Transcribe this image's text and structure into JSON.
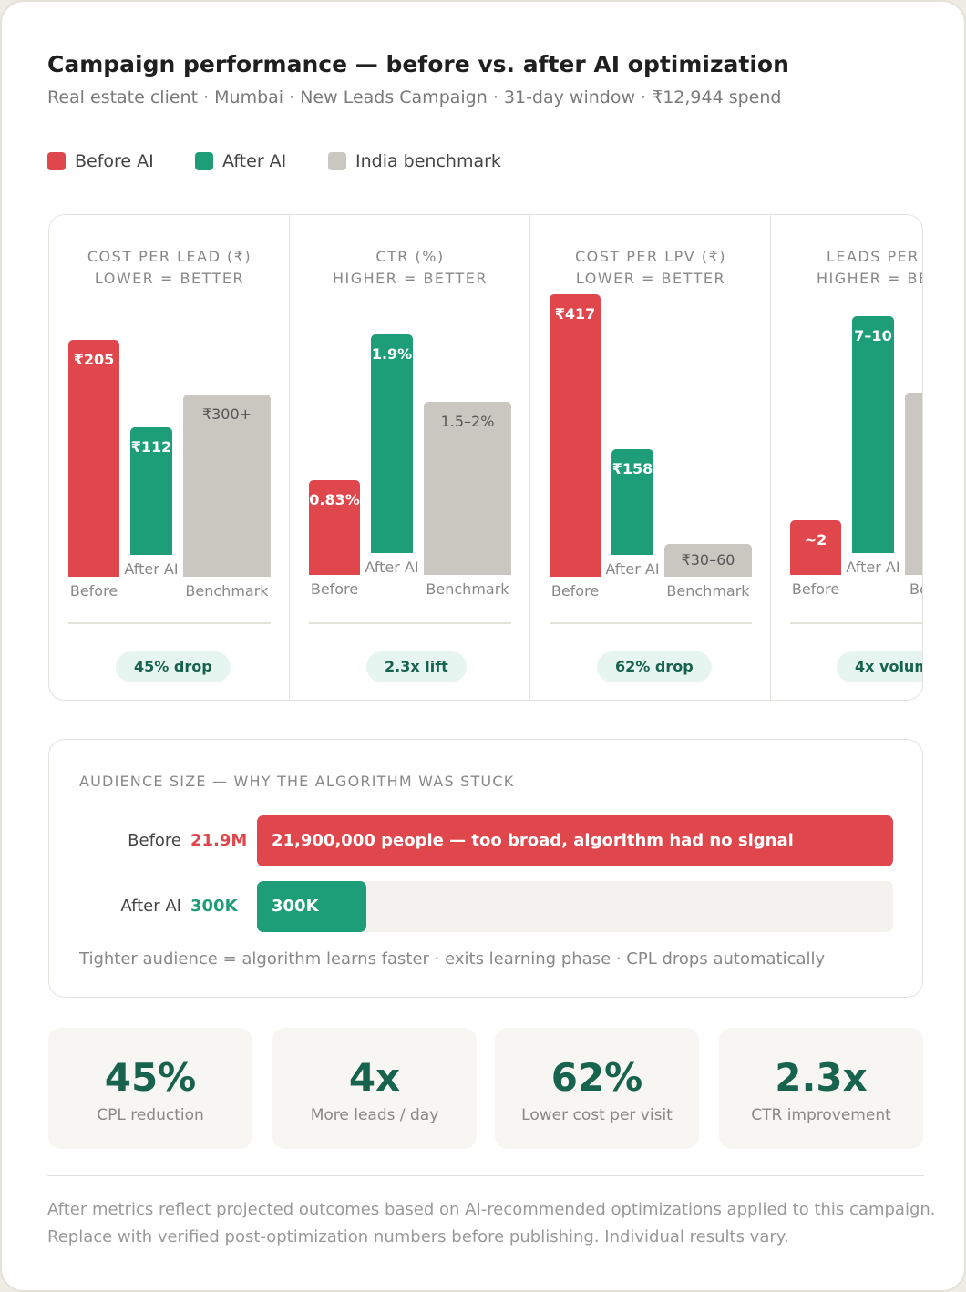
{
  "header": {
    "title": "Campaign performance — before vs. after AI optimization",
    "subtitle": "Real estate client · Mumbai · New Leads Campaign · 31-day window · ₹12,944 spend"
  },
  "legend": [
    "Before AI",
    "After AI",
    "India benchmark"
  ],
  "panels": [
    {
      "title": "COST PER LEAD (₹)",
      "subtitle": "LOWER = BETTER",
      "bars": [
        {
          "label": "₹205",
          "category": "Before"
        },
        {
          "label": "₹112",
          "category": "After AI"
        },
        {
          "label": "₹300+",
          "category": "Benchmark"
        }
      ],
      "badge": "45% drop"
    },
    {
      "title": "CTR (%)",
      "subtitle": "HIGHER = BETTER",
      "bars": [
        {
          "label": "0.83%",
          "category": "Before"
        },
        {
          "label": "1.9%",
          "category": "After AI"
        },
        {
          "label": "1.5–2%",
          "category": "Benchmark"
        }
      ],
      "badge": "2.3x lift"
    },
    {
      "title": "COST PER LPV (₹)",
      "subtitle": "LOWER = BETTER",
      "bars": [
        {
          "label": "₹417",
          "category": "Before"
        },
        {
          "label": "₹158",
          "category": "After AI"
        },
        {
          "label": "₹30–60",
          "category": "Benchmark"
        }
      ],
      "badge": "62% drop"
    },
    {
      "title": "LEADS PER",
      "subtitle": "HIGHER = BE",
      "bars": [
        {
          "label": "~2",
          "category": "Before"
        },
        {
          "label": "7–10",
          "category": "After AI"
        },
        {
          "category": "Be"
        }
      ],
      "badge": "4x volum"
    }
  ],
  "audience": {
    "title": "AUDIENCE SIZE — WHY THE ALGORITHM WAS STUCK",
    "rows": [
      {
        "name": "Before",
        "value": "21.9M",
        "bar": "21,900,000 people — too broad, algorithm had no signal"
      },
      {
        "name": "After AI",
        "value": "300K",
        "bar": "300K"
      }
    ],
    "note": "Tighter audience = algorithm learns faster · exits learning phase · CPL drops automatically"
  },
  "stats": [
    {
      "value": "45%",
      "label": "CPL reduction"
    },
    {
      "value": "4x",
      "label": "More leads / day"
    },
    {
      "value": "62%",
      "label": "Lower cost per visit"
    },
    {
      "value": "2.3x",
      "label": "CTR improvement"
    }
  ],
  "footer": [
    "After metrics reflect projected outcomes based on AI-recommended optimizations applied to this campaign.",
    "Replace with verified post-optimization numbers before publishing. Individual results vary."
  ]
}
